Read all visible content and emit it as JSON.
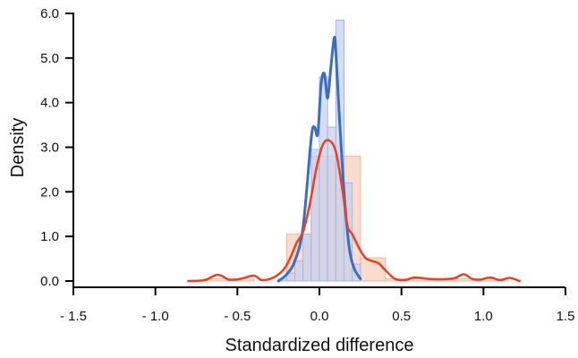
{
  "chart_data": {
    "type": "histogram",
    "xlabel": "Standardized difference",
    "ylabel": "Density",
    "xlim": [
      -1.5,
      1.5
    ],
    "ylim": [
      0,
      6.0
    ],
    "xticks": [
      -1.5,
      -1.0,
      -0.5,
      0.0,
      0.5,
      1.0,
      1.5
    ],
    "xtick_labels": [
      "- 1.5",
      "- 1.0",
      "- 0.5",
      "0.0",
      "0.5",
      "1.0",
      "1.5"
    ],
    "yticks": [
      0,
      1,
      2,
      3,
      4,
      5,
      6
    ],
    "ytick_labels": [
      "0.0",
      "1.0",
      "2.0",
      "3.0",
      "4.0",
      "5.0",
      "6.0"
    ],
    "grid": false,
    "colors": {
      "blue_bar_fill": "#c8d0ee",
      "blue_bar_stroke": "#a9b5e2",
      "orange_bar_fill": "#f8d3c1",
      "orange_bar_stroke": "#f0b79d",
      "blue_line": "#3a6fc0",
      "red_line": "#e8412a"
    },
    "series": [
      {
        "kind": "histogram",
        "color": "blue",
        "bins": [
          {
            "x0": -0.25,
            "x1": -0.2,
            "density": 0.05
          },
          {
            "x0": -0.2,
            "x1": -0.15,
            "density": 0.18
          },
          {
            "x0": -0.15,
            "x1": -0.1,
            "density": 0.45
          },
          {
            "x0": -0.1,
            "x1": -0.05,
            "density": 1.05
          },
          {
            "x0": -0.05,
            "x1": 0.0,
            "density": 2.95
          },
          {
            "x0": 0.0,
            "x1": 0.05,
            "density": 4.58
          },
          {
            "x0": 0.05,
            "x1": 0.1,
            "density": 3.45
          },
          {
            "x0": 0.1,
            "x1": 0.15,
            "density": 5.85
          },
          {
            "x0": 0.15,
            "x1": 0.2,
            "density": 2.2
          },
          {
            "x0": 0.2,
            "x1": 0.25,
            "density": 0.38
          }
        ]
      },
      {
        "kind": "histogram",
        "color": "orange",
        "bins": [
          {
            "x0": -0.7,
            "x1": -0.4,
            "density": 0.05
          },
          {
            "x0": -0.2,
            "x1": -0.05,
            "density": 1.05
          },
          {
            "x0": -0.05,
            "x1": 0.1,
            "density": 2.8
          },
          {
            "x0": 0.1,
            "x1": 0.25,
            "density": 2.8
          },
          {
            "x0": 0.25,
            "x1": 0.4,
            "density": 0.52
          },
          {
            "x0": 0.4,
            "x1": 1.15,
            "density": 0.05
          }
        ]
      },
      {
        "kind": "density",
        "color": "blue",
        "x": [
          -0.25,
          -0.2,
          -0.15,
          -0.1,
          -0.05,
          -0.03,
          -0.01,
          0.01,
          0.03,
          0.05,
          0.07,
          0.09,
          0.1,
          0.12,
          0.15,
          0.18,
          0.21,
          0.25
        ],
        "y": [
          0.0,
          0.15,
          0.45,
          1.2,
          3.2,
          3.45,
          3.3,
          4.4,
          4.65,
          4.1,
          4.8,
          5.45,
          5.15,
          3.8,
          2.0,
          0.8,
          0.3,
          0.05
        ]
      },
      {
        "kind": "density",
        "color": "red",
        "x": [
          -0.8,
          -0.7,
          -0.62,
          -0.55,
          -0.48,
          -0.4,
          -0.35,
          -0.28,
          -0.22,
          -0.18,
          -0.14,
          -0.1,
          -0.06,
          -0.02,
          0.02,
          0.06,
          0.1,
          0.14,
          0.17,
          0.2,
          0.24,
          0.28,
          0.32,
          0.36,
          0.4,
          0.46,
          0.52,
          0.58,
          0.66,
          0.74,
          0.82,
          0.88,
          0.93,
          0.98,
          1.04,
          1.1,
          1.16,
          1.22
        ],
        "y": [
          0.0,
          0.02,
          0.14,
          0.03,
          0.05,
          0.12,
          0.02,
          0.08,
          0.25,
          0.5,
          0.85,
          1.1,
          1.7,
          2.5,
          3.05,
          3.15,
          2.9,
          2.05,
          1.25,
          1.05,
          0.75,
          0.52,
          0.45,
          0.4,
          0.25,
          0.05,
          0.02,
          0.08,
          0.05,
          0.04,
          0.06,
          0.15,
          0.05,
          0.03,
          0.08,
          0.02,
          0.07,
          0.0
        ]
      }
    ]
  }
}
